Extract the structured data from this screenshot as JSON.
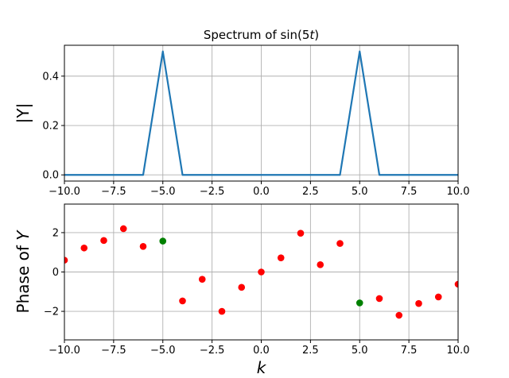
{
  "chart_data": [
    {
      "type": "line",
      "title": "Spectrum of sin(5t)",
      "title_parts": {
        "prefix": "Spectrum of sin(5",
        "var": "t",
        "suffix": ")"
      },
      "xlabel": "",
      "ylabel": "|Y|",
      "xlim": [
        -10,
        10
      ],
      "ylim": [
        -0.025,
        0.525
      ],
      "xticks": [
        -10,
        -7.5,
        -5,
        -2.5,
        0,
        2.5,
        5,
        7.5,
        10
      ],
      "xtick_labels": [
        "−10.0",
        "−7.5",
        "−5.0",
        "−2.5",
        "0.0",
        "2.5",
        "5.0",
        "7.5",
        "10.0"
      ],
      "yticks": [
        0,
        0.2,
        0.4
      ],
      "ytick_labels": [
        "0.0",
        "0.2",
        "0.4"
      ],
      "grid": true,
      "line_color": "#1f77b4",
      "series": [
        {
          "x": [
            -10,
            -9,
            -8,
            -7,
            -6,
            -5,
            -4,
            -3,
            -2,
            -1,
            0,
            1,
            2,
            3,
            4,
            5,
            6,
            7,
            8,
            9,
            10
          ],
          "y": [
            0,
            0,
            0,
            0,
            0,
            0.5,
            0,
            0,
            0,
            0,
            0,
            0,
            0,
            0,
            0,
            0.5,
            0,
            0,
            0,
            0,
            0
          ]
        }
      ]
    },
    {
      "type": "scatter",
      "title": "",
      "xlabel": "k",
      "ylabel": "Phase of Y",
      "ylabel_parts": {
        "prefix": "Phase of ",
        "var": "Y"
      },
      "xlim": [
        -10,
        10
      ],
      "ylim": [
        -3.45,
        3.45
      ],
      "xticks": [
        -10,
        -7.5,
        -5,
        -2.5,
        0,
        2.5,
        5,
        7.5,
        10
      ],
      "xtick_labels": [
        "−10.0",
        "−7.5",
        "−5.0",
        "−2.5",
        "0.0",
        "2.5",
        "5.0",
        "7.5",
        "10.0"
      ],
      "yticks": [
        -2,
        0,
        2
      ],
      "ytick_labels": [
        "−2",
        "0",
        "2"
      ],
      "grid": true,
      "series": [
        {
          "color": "#ff0000",
          "x": [
            -10,
            -9,
            -8,
            -7,
            -6,
            -4,
            -3,
            -2,
            -1,
            0,
            1,
            2,
            3,
            4,
            6,
            7,
            8,
            9,
            10
          ],
          "y": [
            0.6,
            1.22,
            1.6,
            2.2,
            1.3,
            -1.47,
            -0.37,
            -2.0,
            -0.78,
            0,
            0.72,
            1.97,
            0.37,
            1.45,
            -1.35,
            -2.2,
            -1.6,
            -1.27,
            -0.62
          ]
        },
        {
          "color": "#008000",
          "x": [
            -5,
            5
          ],
          "y": [
            1.57,
            -1.57
          ]
        }
      ]
    }
  ]
}
